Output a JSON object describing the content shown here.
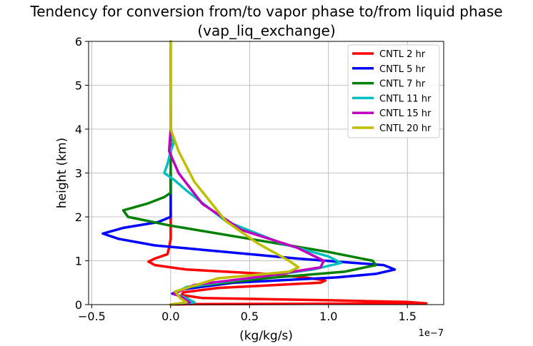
{
  "chart_data": {
    "type": "line",
    "title": "Tendency for conversion from/to vapor phase to/from liquid phase",
    "subtitle": "(vap_liq_exchange)",
    "xlabel": "(kg/kg/s)",
    "ylabel": "height (km)",
    "x_offset_label": "1e−7",
    "xlim": [
      -0.52,
      1.73
    ],
    "ylim": [
      0,
      6
    ],
    "xticks": [
      -0.5,
      0.0,
      0.5,
      1.0,
      1.5
    ],
    "xtick_labels": [
      "−0.5",
      "0.0",
      "0.5",
      "1.0",
      "1.5"
    ],
    "yticks": [
      0,
      1,
      2,
      3,
      4,
      5,
      6
    ],
    "ytick_labels": [
      "0",
      "1",
      "2",
      "3",
      "4",
      "5",
      "6"
    ],
    "grid": true,
    "legend_position": "top-right",
    "series": [
      {
        "name": "CNTL 2 hr",
        "color": "#ff0000",
        "points": [
          [
            0,
            0
          ],
          [
            0.1,
            0.01
          ],
          [
            1.62,
            0.03
          ],
          [
            1.5,
            0.06
          ],
          [
            1.0,
            0.1
          ],
          [
            0.2,
            0.15
          ],
          [
            0.07,
            0.22
          ],
          [
            0.08,
            0.28
          ],
          [
            0.3,
            0.38
          ],
          [
            0.95,
            0.5
          ],
          [
            0.98,
            0.55
          ],
          [
            0.85,
            0.62
          ],
          [
            0.6,
            0.7
          ],
          [
            0.1,
            0.8
          ],
          [
            -0.1,
            0.9
          ],
          [
            -0.14,
            0.98
          ],
          [
            -0.1,
            1.05
          ],
          [
            -0.02,
            1.15
          ],
          [
            -0.01,
            1.3
          ],
          [
            0,
            1.5
          ],
          [
            0,
            2.0
          ],
          [
            0,
            2.15
          ]
        ]
      },
      {
        "name": "CNTL 5 hr",
        "color": "#0000ff",
        "points": [
          [
            0,
            0
          ],
          [
            0.15,
            0.05
          ],
          [
            0.1,
            0.15
          ],
          [
            0.01,
            0.25
          ],
          [
            0.08,
            0.35
          ],
          [
            0.4,
            0.5
          ],
          [
            1.05,
            0.62
          ],
          [
            1.3,
            0.7
          ],
          [
            1.42,
            0.8
          ],
          [
            1.35,
            0.9
          ],
          [
            0.8,
            1.05
          ],
          [
            0.2,
            1.25
          ],
          [
            -0.1,
            1.35
          ],
          [
            -0.33,
            1.5
          ],
          [
            -0.43,
            1.62
          ],
          [
            -0.3,
            1.75
          ],
          [
            -0.08,
            1.88
          ],
          [
            0,
            2.0
          ],
          [
            0,
            2.5
          ],
          [
            0,
            3.0
          ]
        ]
      },
      {
        "name": "CNTL 7 hr",
        "color": "#008000",
        "points": [
          [
            0,
            0
          ],
          [
            0.1,
            0.05
          ],
          [
            0.08,
            0.15
          ],
          [
            0.02,
            0.25
          ],
          [
            0.1,
            0.4
          ],
          [
            0.6,
            0.6
          ],
          [
            1.1,
            0.75
          ],
          [
            1.3,
            0.9
          ],
          [
            1.28,
            1.0
          ],
          [
            1.0,
            1.2
          ],
          [
            0.5,
            1.5
          ],
          [
            0,
            1.8
          ],
          [
            -0.27,
            2.0
          ],
          [
            -0.3,
            2.15
          ],
          [
            -0.15,
            2.3
          ],
          [
            -0.04,
            2.45
          ],
          [
            0,
            2.55
          ],
          [
            0,
            3.0
          ],
          [
            0,
            4.0
          ],
          [
            0,
            5.0
          ],
          [
            0,
            6.0
          ]
        ]
      },
      {
        "name": "CNTL 11 hr",
        "color": "#00bfbf",
        "points": [
          [
            0,
            0
          ],
          [
            0.15,
            0.05
          ],
          [
            0.1,
            0.15
          ],
          [
            0.02,
            0.25
          ],
          [
            0.1,
            0.4
          ],
          [
            0.5,
            0.6
          ],
          [
            0.9,
            0.8
          ],
          [
            1.08,
            0.95
          ],
          [
            1.0,
            1.1
          ],
          [
            0.7,
            1.4
          ],
          [
            0.35,
            1.9
          ],
          [
            0.1,
            2.6
          ],
          [
            0.02,
            2.85
          ],
          [
            -0.04,
            3.0
          ],
          [
            -0.02,
            3.2
          ],
          [
            0,
            3.5
          ],
          [
            0.02,
            3.7
          ],
          [
            0,
            3.9
          ],
          [
            0,
            4.5
          ],
          [
            0,
            5.0
          ]
        ]
      },
      {
        "name": "CNTL 15 hr",
        "color": "#bf00bf",
        "points": [
          [
            0,
            0
          ],
          [
            0.12,
            0.05
          ],
          [
            0.08,
            0.15
          ],
          [
            0.02,
            0.25
          ],
          [
            0.15,
            0.45
          ],
          [
            0.6,
            0.65
          ],
          [
            0.95,
            0.85
          ],
          [
            0.97,
            1.0
          ],
          [
            0.8,
            1.3
          ],
          [
            0.45,
            1.7
          ],
          [
            0.2,
            2.3
          ],
          [
            0.05,
            3.0
          ],
          [
            -0.01,
            3.5
          ],
          [
            0,
            4.0
          ],
          [
            0,
            4.5
          ]
        ]
      },
      {
        "name": "CNTL 20 hr",
        "color": "#bfbf00",
        "points": [
          [
            0,
            0
          ],
          [
            0.1,
            0.05
          ],
          [
            0.06,
            0.15
          ],
          [
            0.03,
            0.3
          ],
          [
            0.3,
            0.6
          ],
          [
            0.75,
            0.75
          ],
          [
            0.81,
            0.85
          ],
          [
            0.75,
            1.0
          ],
          [
            0.55,
            1.4
          ],
          [
            0.35,
            1.9
          ],
          [
            0.15,
            2.8
          ],
          [
            0.05,
            3.5
          ],
          [
            0,
            4.0
          ],
          [
            0,
            4.2
          ],
          [
            0,
            5.0
          ],
          [
            0,
            6.0
          ]
        ]
      }
    ]
  }
}
